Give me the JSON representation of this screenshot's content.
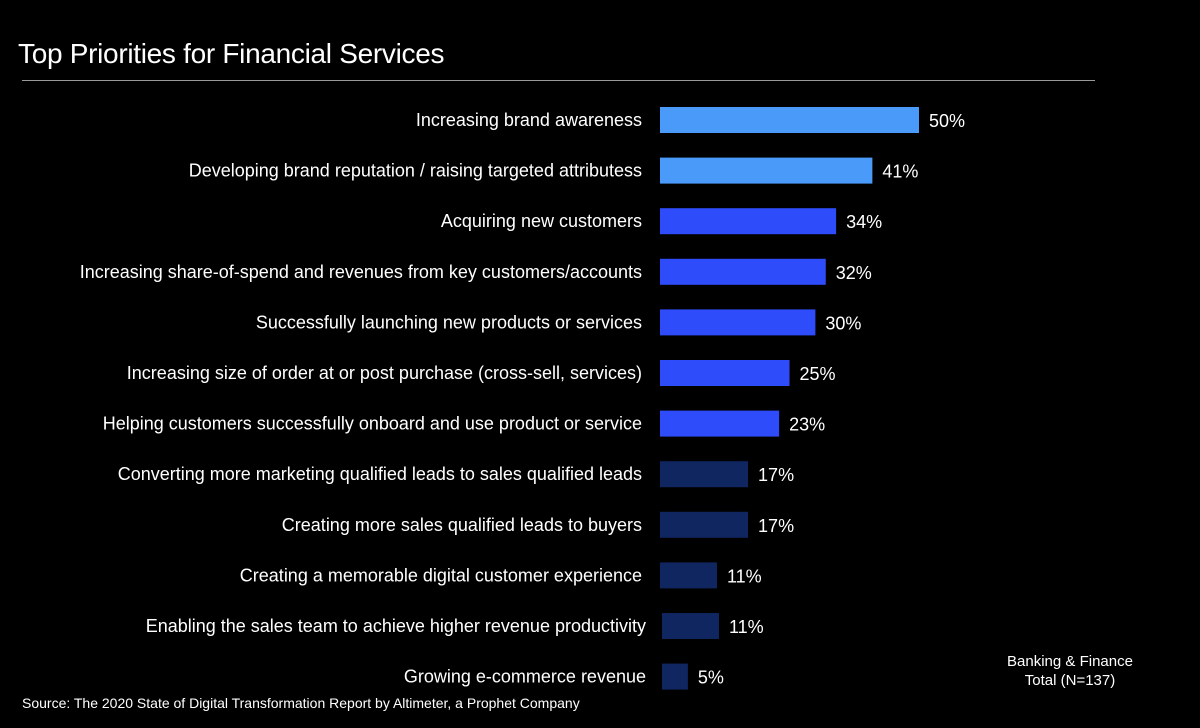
{
  "chart_data": {
    "type": "bar",
    "orientation": "horizontal",
    "title": "Top Priorities for Financial Services",
    "categories": [
      "Increasing brand awareness",
      "Developing brand reputation / raising targeted attributess",
      "Acquiring new customers",
      "Increasing share-of-spend and revenues from key customers/accounts",
      "Successfully  launching new products or services",
      "Increasing size of order at or post purchase (cross-sell, services)",
      "Helping customers successfully onboard and use product or service",
      "Converting more marketing qualified leads to sales qualified leads",
      "Creating more sales qualified leads to buyers",
      "Creating a memorable digital customer experience",
      "Enabling the sales team to achieve higher revenue productivity",
      "Growing e-commerce revenue"
    ],
    "series": [
      {
        "name": "Banking & Finance Total (N=137)",
        "values": [
          50,
          41,
          34,
          32,
          30,
          25,
          23,
          17,
          17,
          11,
          11,
          5
        ],
        "labels": [
          "50%",
          "41%",
          "34%",
          "32%",
          "30%",
          "25%",
          "23%",
          "17%",
          "17%",
          "11%",
          "11%",
          "5%"
        ],
        "colors": [
          "#4a9bf9",
          "#4a9bf9",
          "#2f4cfb",
          "#2f4cfb",
          "#2f4cfb",
          "#2f4cfb",
          "#2f4cfb",
          "#0f2660",
          "#0f2660",
          "#0f2660",
          "#0f2660",
          "#0f2660"
        ]
      }
    ],
    "value_unit": "%",
    "xlim": [
      0,
      50
    ],
    "grid": false,
    "legend_placement": "bottom-right"
  },
  "legend": {
    "line1": "Banking & Finance",
    "line2": "Total (N=137)"
  },
  "source": "Source: The 2020 State of Digital Transformation Report by Altimeter, a Prophet Company",
  "colors": {
    "background": "#000000",
    "text": "#ffffff",
    "rule": "#9a9a9a"
  }
}
